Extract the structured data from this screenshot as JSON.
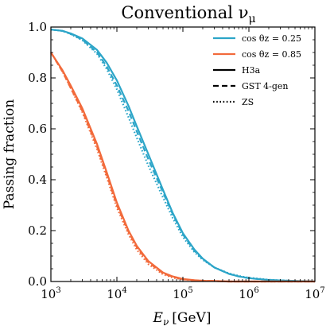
{
  "chart_data": {
    "type": "line",
    "title": "Conventional ν",
    "title_sub": "μ",
    "xlabel_var": "E",
    "xlabel_sub": "ν",
    "xlabel_unit": "[GeV]",
    "ylabel": "Passing fraction",
    "x_scale": "log",
    "xlim": [
      1000,
      10000000
    ],
    "ylim": [
      0.0,
      1.0
    ],
    "x_ticks": [
      {
        "value": 1000,
        "base": "10",
        "exp": "3"
      },
      {
        "value": 10000,
        "base": "10",
        "exp": "4"
      },
      {
        "value": 100000,
        "base": "10",
        "exp": "5"
      },
      {
        "value": 1000000,
        "base": "10",
        "exp": "6"
      },
      {
        "value": 10000000,
        "base": "10",
        "exp": "7"
      }
    ],
    "y_ticks": [
      {
        "value": 0.0,
        "label": "0.0"
      },
      {
        "value": 0.2,
        "label": "0.2"
      },
      {
        "value": 0.4,
        "label": "0.4"
      },
      {
        "value": 0.6,
        "label": "0.6"
      },
      {
        "value": 0.8,
        "label": "0.8"
      },
      {
        "value": 1.0,
        "label": "1.0"
      }
    ],
    "grid": false,
    "legend_position": "top-right",
    "legend": {
      "colors": [
        {
          "label": "cos θz = 0.25",
          "color": "#2ca5c8"
        },
        {
          "label": "cos θz = 0.85",
          "color": "#f26a3b"
        }
      ],
      "styles": [
        {
          "label": "H3a",
          "dash": "solid"
        },
        {
          "label": "GST 4-gen",
          "dash": "dashed"
        },
        {
          "label": "ZS",
          "dash": "dotted"
        }
      ]
    },
    "x": [
      1000,
      1500,
      2000,
      3000,
      5000,
      7000,
      10000,
      15000,
      20000,
      30000,
      50000,
      70000,
      100000,
      150000,
      200000,
      300000,
      500000,
      700000,
      1000000,
      2000000,
      5000000,
      10000000
    ],
    "series": [
      {
        "angle": "0.25",
        "model": "H3a",
        "color": "#2ca5c8",
        "dash": "solid",
        "values": [
          0.99,
          0.985,
          0.975,
          0.955,
          0.91,
          0.86,
          0.79,
          0.69,
          0.61,
          0.5,
          0.36,
          0.27,
          0.19,
          0.125,
          0.09,
          0.055,
          0.03,
          0.02,
          0.013,
          0.006,
          0.002,
          0.0
        ]
      },
      {
        "angle": "0.25",
        "model": "GST 4-gen",
        "color": "#2ca5c8",
        "dash": "dashed",
        "values": [
          0.99,
          0.985,
          0.973,
          0.95,
          0.9,
          0.845,
          0.77,
          0.67,
          0.59,
          0.48,
          0.35,
          0.265,
          0.185,
          0.12,
          0.088,
          0.055,
          0.03,
          0.02,
          0.013,
          0.006,
          0.002,
          0.0
        ]
      },
      {
        "angle": "0.25",
        "model": "ZS",
        "color": "#2ca5c8",
        "dash": "dotted",
        "values": [
          0.99,
          0.985,
          0.972,
          0.948,
          0.895,
          0.835,
          0.755,
          0.645,
          0.565,
          0.455,
          0.33,
          0.25,
          0.175,
          0.115,
          0.085,
          0.055,
          0.032,
          0.022,
          0.015,
          0.007,
          0.002,
          0.0
        ]
      },
      {
        "angle": "0.85",
        "model": "H3a",
        "color": "#f26a3b",
        "dash": "solid",
        "values": [
          0.9,
          0.83,
          0.77,
          0.68,
          0.54,
          0.43,
          0.31,
          0.2,
          0.14,
          0.08,
          0.035,
          0.02,
          0.01,
          0.005,
          0.003,
          0.002,
          0.0,
          0.0,
          0.0,
          0.0,
          0.0,
          0.0
        ]
      },
      {
        "angle": "0.85",
        "model": "GST 4-gen",
        "color": "#f26a3b",
        "dash": "dashed",
        "values": [
          0.9,
          0.825,
          0.76,
          0.67,
          0.53,
          0.42,
          0.3,
          0.195,
          0.135,
          0.075,
          0.032,
          0.018,
          0.009,
          0.004,
          0.003,
          0.002,
          0.0,
          0.0,
          0.0,
          0.0,
          0.0,
          0.0
        ]
      },
      {
        "angle": "0.85",
        "model": "ZS",
        "color": "#f26a3b",
        "dash": "dotted",
        "values": [
          0.9,
          0.825,
          0.76,
          0.665,
          0.52,
          0.41,
          0.29,
          0.185,
          0.125,
          0.068,
          0.028,
          0.015,
          0.008,
          0.004,
          0.003,
          0.002,
          0.0,
          0.0,
          0.0,
          0.0,
          0.0,
          0.0
        ]
      }
    ]
  }
}
